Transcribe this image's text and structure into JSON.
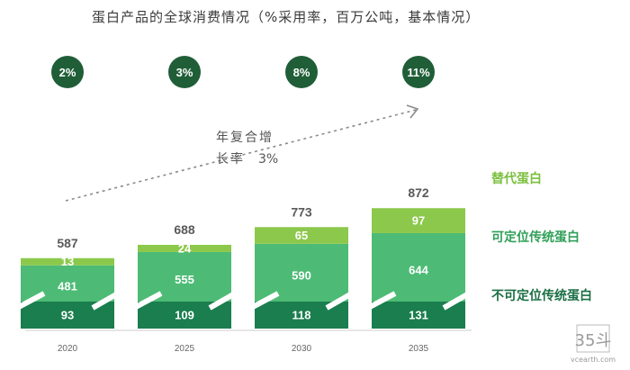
{
  "chart_data": {
    "type": "bar",
    "stacked": true,
    "title": "蛋白产品的全球消费情况（%采用率，百万公吨，基本情况）",
    "categories": [
      "2020",
      "2025",
      "2030",
      "2035"
    ],
    "adoption_rates": [
      "2%",
      "3%",
      "8%",
      "11%"
    ],
    "totals": [
      587,
      688,
      773,
      872
    ],
    "series": [
      {
        "name": "不可定位传统蛋白",
        "values": [
          93,
          109,
          118,
          131
        ],
        "color": "#1a7e4e"
      },
      {
        "name": "可定位传统蛋白",
        "values": [
          481,
          555,
          590,
          644
        ],
        "color": "#4dbb75"
      },
      {
        "name": "替代蛋白",
        "values": [
          13,
          24,
          65,
          97
        ],
        "color": "#8cc84b"
      }
    ],
    "cagr_annotation": {
      "line1": "年复合增",
      "line2": "长率",
      "value": "3%"
    },
    "axis_break": true,
    "grid": false,
    "legend_position": "right"
  },
  "colors": {
    "badge_bg": "#1f5e37",
    "axis": "#cccccc"
  },
  "watermark": {
    "logo": "35斗",
    "url": "vcearth.com"
  }
}
